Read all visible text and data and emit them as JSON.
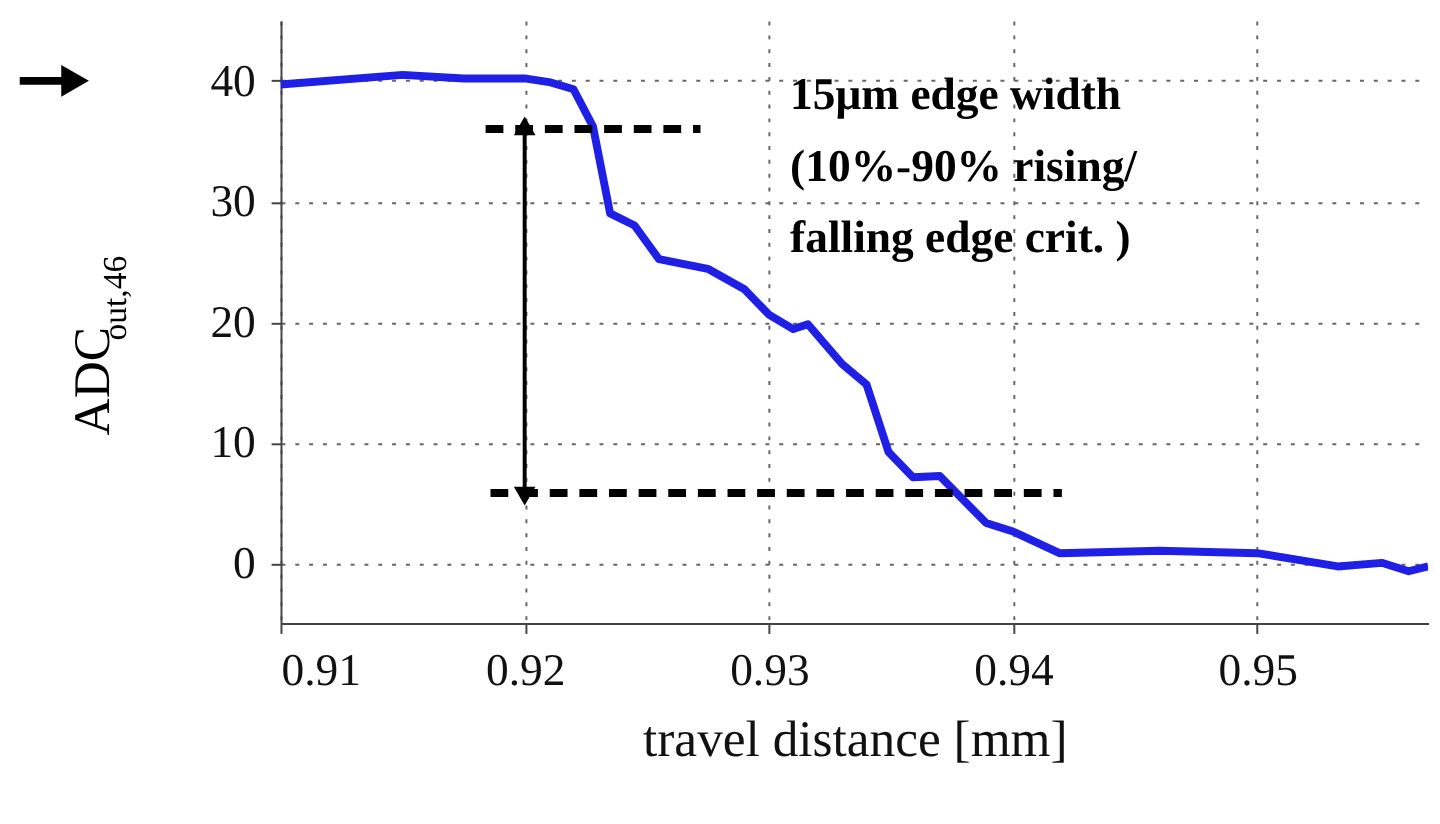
{
  "chart_data": {
    "type": "line",
    "xlabel": "travel distance [mm]",
    "ylabel": "ADC$_{out,46}$",
    "xlim": [
      0.91,
      0.957
    ],
    "xticks": [
      0.91,
      0.92,
      0.93,
      0.94,
      0.95
    ],
    "ylim": [
      -5,
      45
    ],
    "yticks": [
      0,
      10,
      20,
      30,
      40
    ],
    "grid": true,
    "annotations": [
      "15μm edge width\n(10%-90% rising/\nfalling edge crit. )"
    ],
    "series": [
      {
        "color": "#1f1fe6",
        "line_style": "solid",
        "x": [
          0.91,
          0.915,
          0.9175,
          0.92,
          0.921,
          0.922,
          0.9228,
          0.9235,
          0.9245,
          0.9255,
          0.9275,
          0.929,
          0.93,
          0.931,
          0.9316,
          0.933,
          0.934,
          0.9349,
          0.9359,
          0.937,
          0.9389,
          0.94,
          0.9419,
          0.946,
          0.95,
          0.9533,
          0.9551,
          0.9562,
          0.957
        ],
        "values": [
          39.7,
          40.5,
          40.2,
          40.2,
          39.9,
          39.3,
          36.2,
          29,
          28,
          25.2,
          24.4,
          22.7,
          20.6,
          19.4,
          19.8,
          16.5,
          14.8,
          9.2,
          7.1,
          7.2,
          3.3,
          2.6,
          0.8,
          1,
          0.8,
          -0.3,
          0,
          -0.7,
          -0.3
        ]
      },
      {
        "color": "#000000",
        "line_style": "dashed",
        "x": [
          0.9184,
          0.9272
        ],
        "values": [
          36,
          36
        ]
      },
      {
        "color": "#000000",
        "line_style": "dashed",
        "x": [
          0.9186,
          0.942
        ],
        "values": [
          5.8,
          5.8
        ]
      }
    ]
  }
}
